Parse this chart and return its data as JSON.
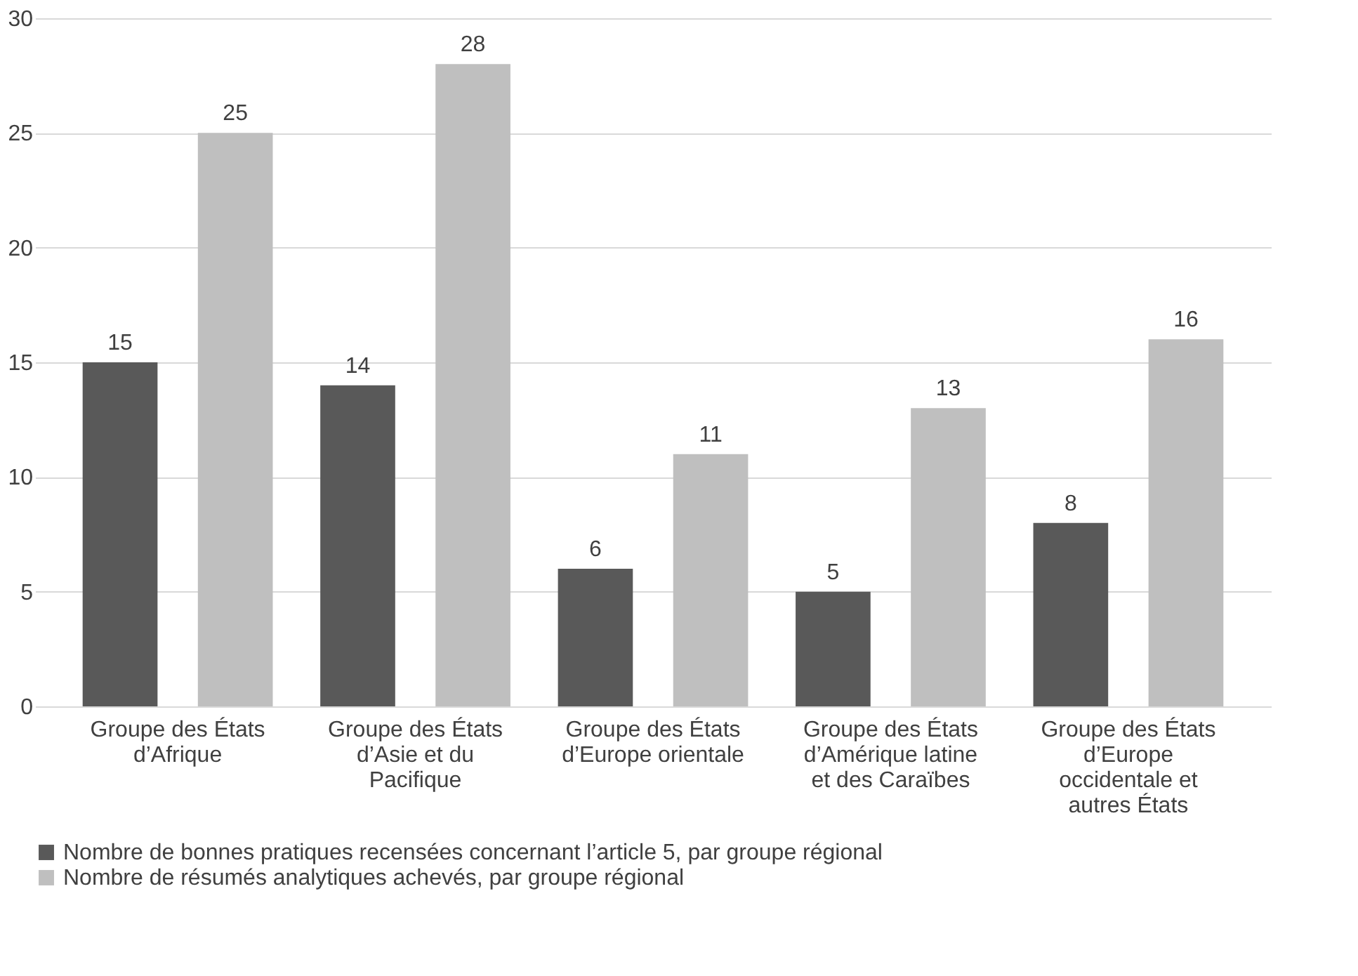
{
  "chart_data": {
    "type": "bar",
    "categories": [
      "Groupe des États d’Afrique",
      "Groupe des États d’Asie et du Pacifique",
      "Groupe des États d’Europe orientale",
      "Groupe des États d’Amérique latine et des Caraïbes",
      "Groupe des États d’Europe occidentale et autres États"
    ],
    "series": [
      {
        "name": "Nombre de bonnes pratiques recensées concernant l’article 5, par groupe régional",
        "color": "#595959",
        "values": [
          15,
          14,
          6,
          5,
          8
        ]
      },
      {
        "name": "Nombre de résumés analytiques achevés, par groupe régional",
        "color": "#bfbfbf",
        "values": [
          25,
          28,
          11,
          13,
          16
        ]
      }
    ],
    "ylim": [
      0,
      30
    ],
    "yticks": [
      0,
      5,
      10,
      15,
      20,
      25,
      30
    ],
    "grid": "y",
    "legend": "bottom",
    "data_labels": true
  }
}
